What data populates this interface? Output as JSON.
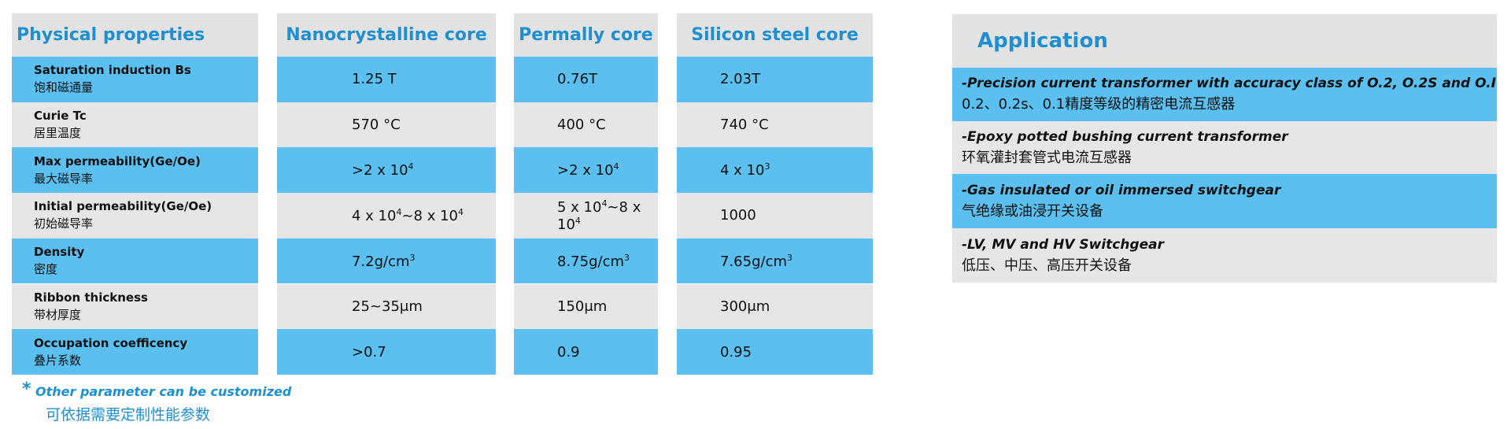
{
  "table": {
    "headers": [
      "Physical properties",
      "Nanocrystalline core",
      "Permally core",
      "Silicon steel core"
    ],
    "rows": [
      {
        "label_en": "Saturation induction Bs",
        "label_zh": "饱和磁通量",
        "values": [
          [
            "1.25 T"
          ],
          [
            "0.76T"
          ],
          [
            "2.03T"
          ]
        ]
      },
      {
        "label_en": "Curie Tc",
        "label_zh": "居里温度",
        "values": [
          [
            "570 °C"
          ],
          [
            "400 °C"
          ],
          [
            "740 °C"
          ]
        ]
      },
      {
        "label_en": "Max permeability(Ge/Oe)",
        "label_zh": "最大磁导率",
        "values": [
          [
            ">2 x 10",
            "4"
          ],
          [
            ">2 x 10",
            "4"
          ],
          [
            "4 x 10",
            "3"
          ]
        ]
      },
      {
        "label_en": "Initial  permeability(Ge/Oe)",
        "label_zh": "初始磁导率",
        "values": [
          [
            "4 x 10",
            "4",
            "~8 x 10",
            "4"
          ],
          [
            "5 x 10",
            "4",
            "~8 x 10",
            "4"
          ],
          [
            "1000"
          ]
        ]
      },
      {
        "label_en": "Density",
        "label_zh": "密度",
        "values": [
          [
            "7.2g/cm",
            "3"
          ],
          [
            "8.75g/cm",
            "3"
          ],
          [
            "7.65g/cm",
            "3"
          ]
        ]
      },
      {
        "label_en": "Ribbon thickness",
        "label_zh": "带材厚度",
        "values": [
          [
            "25~35μm"
          ],
          [
            "150μm"
          ],
          [
            "300μm"
          ]
        ]
      },
      {
        "label_en": "Occupation coefficency",
        "label_zh": "叠片系数",
        "values": [
          [
            ">0.7"
          ],
          [
            "0.9"
          ],
          [
            "0.95"
          ]
        ]
      }
    ]
  },
  "footnote": {
    "mark": "*",
    "en": "Other parameter can be customized",
    "zh": "可依据需要定制性能参数"
  },
  "application": {
    "title": "Application",
    "items": [
      {
        "en": "-Precision current transformer with accuracy class of O.2, O.2S and O.I",
        "zh": "0.2、0.2s、0.1精度等级的精密电流互感器"
      },
      {
        "en": "-Epoxy potted bushing current transformer",
        "zh": "环氧灌封套管式电流互感器"
      },
      {
        "en": "-Gas insulated or oil immersed switchgear",
        "zh": "气绝缘或油浸开关设备"
      },
      {
        "en": "-LV, MV and HV Switchgear",
        "zh": "低压、中压、高压开关设备"
      }
    ]
  }
}
